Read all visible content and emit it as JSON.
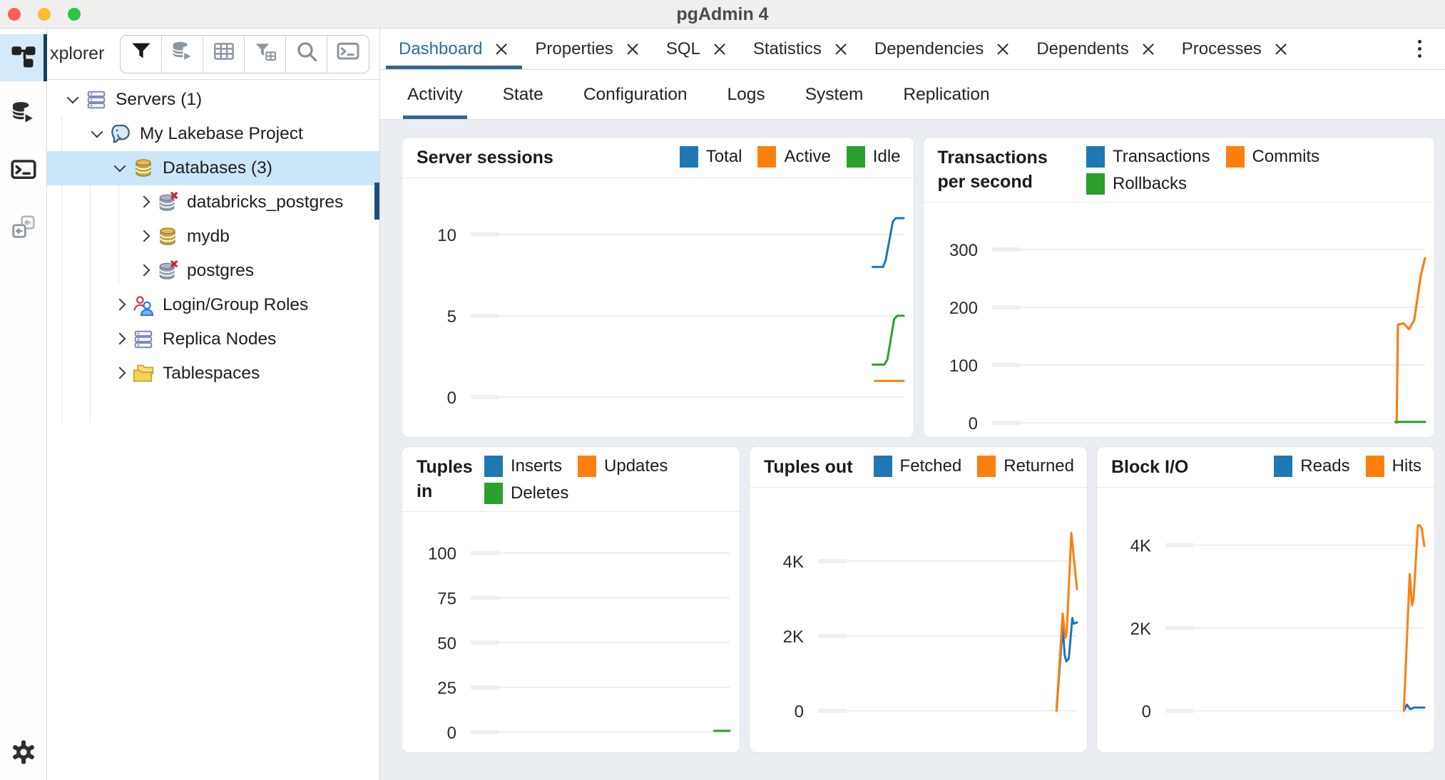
{
  "window": {
    "title": "pgAdmin 4"
  },
  "colors": {
    "accent": "#326690",
    "active_tab_text": "#2d6d98",
    "tree_selection_bg": "#cbe6f9",
    "activity_active_bg": "#d4eafb",
    "activity_active_indicator": "#1a3e5e",
    "scrollbar_thumb": "#1d4f7c",
    "mac_close": "#ff5f57",
    "mac_minimize": "#febc2e",
    "mac_zoom": "#28c840",
    "series_blue": "#1F77B4",
    "series_orange": "#FF7F0E",
    "series_green": "#2CA02C"
  },
  "activity_bar": {
    "items": [
      {
        "name": "object-explorer",
        "active": true
      },
      {
        "name": "query-tool",
        "active": false
      },
      {
        "name": "psql-tool",
        "active": false
      },
      {
        "name": "schema-diff",
        "active": false
      }
    ],
    "bottom_item": "preferences"
  },
  "sidebar": {
    "header_label": "xplorer",
    "toolbar_buttons": [
      "filter",
      "query-tool",
      "view-data",
      "filter-rows",
      "search",
      "psql"
    ],
    "tree": [
      {
        "label": "Servers (1)",
        "depth": 1,
        "icon": "servers",
        "expanded": true,
        "selected": false
      },
      {
        "label": "My Lakebase Project",
        "depth": 2,
        "icon": "postgresql-server",
        "expanded": true,
        "selected": false
      },
      {
        "label": "Databases (3)",
        "depth": 3,
        "icon": "database-gold",
        "expanded": true,
        "selected": true
      },
      {
        "label": "databricks_postgres",
        "depth": 4,
        "icon": "database-disconnected",
        "expanded": false,
        "selected": false
      },
      {
        "label": "mydb",
        "depth": 4,
        "icon": "database-gold",
        "expanded": false,
        "selected": false
      },
      {
        "label": "postgres",
        "depth": 4,
        "icon": "database-disconnected",
        "expanded": false,
        "selected": false
      },
      {
        "label": "Login/Group Roles",
        "depth": 3,
        "icon": "roles",
        "expanded": false,
        "selected": false
      },
      {
        "label": "Replica Nodes",
        "depth": 3,
        "icon": "servers",
        "expanded": false,
        "selected": false
      },
      {
        "label": "Tablespaces",
        "depth": 3,
        "icon": "tablespaces",
        "expanded": false,
        "selected": false
      }
    ]
  },
  "tabs": {
    "items": [
      {
        "label": "Dashboard",
        "active": true,
        "closable": true
      },
      {
        "label": "Properties",
        "active": false,
        "closable": true
      },
      {
        "label": "SQL",
        "active": false,
        "closable": true
      },
      {
        "label": "Statistics",
        "active": false,
        "closable": true
      },
      {
        "label": "Dependencies",
        "active": false,
        "closable": true
      },
      {
        "label": "Dependents",
        "active": false,
        "closable": true
      },
      {
        "label": "Processes",
        "active": false,
        "closable": true
      }
    ],
    "overflow_menu": "more-options"
  },
  "subtabs": {
    "items": [
      {
        "label": "Activity",
        "active": true
      },
      {
        "label": "State",
        "active": false
      },
      {
        "label": "Configuration",
        "active": false
      },
      {
        "label": "Logs",
        "active": false
      },
      {
        "label": "System",
        "active": false
      },
      {
        "label": "Replication",
        "active": false
      }
    ]
  },
  "chart_data": [
    {
      "type": "line",
      "title": "Server sessions",
      "grid": true,
      "legend_position": "top-right",
      "ylim": [
        0,
        11.7
      ],
      "yticks": [
        {
          "v": 0,
          "label": "0"
        },
        {
          "v": 5,
          "label": "5"
        },
        {
          "v": 10,
          "label": "10"
        }
      ],
      "series": [
        {
          "name": "Total",
          "color": "#1F77B4",
          "points": [
            [
              0.928,
              8
            ],
            [
              0.952,
              8
            ],
            [
              0.958,
              8.4
            ],
            [
              0.975,
              10.8
            ],
            [
              0.982,
              11
            ],
            [
              1,
              11
            ]
          ]
        },
        {
          "name": "Active",
          "color": "#FF7F0E",
          "points": [
            [
              0.933,
              1
            ],
            [
              1,
              1
            ]
          ]
        },
        {
          "name": "Idle",
          "color": "#2CA02C",
          "points": [
            [
              0.928,
              2
            ],
            [
              0.955,
              2
            ],
            [
              0.962,
              2.3
            ],
            [
              0.978,
              4.8
            ],
            [
              0.985,
              5
            ],
            [
              1,
              5
            ]
          ]
        }
      ]
    },
    {
      "type": "line",
      "title": "Transactions per second",
      "grid": true,
      "legend_position": "top-right",
      "ylim": [
        0,
        332
      ],
      "yticks": [
        {
          "v": 0,
          "label": "0"
        },
        {
          "v": 100,
          "label": "100"
        },
        {
          "v": 200,
          "label": "200"
        },
        {
          "v": 300,
          "label": "300"
        }
      ],
      "series": [
        {
          "name": "Transactions",
          "color": "#1F77B4",
          "points": [
            [
              0.934,
              0
            ],
            [
              0.937,
              170
            ],
            [
              0.95,
              172
            ],
            [
              0.958,
              166
            ],
            [
              0.963,
              162
            ],
            [
              0.975,
              178
            ],
            [
              0.99,
              255
            ],
            [
              1,
              285
            ]
          ]
        },
        {
          "name": "Commits",
          "color": "#FF7F0E",
          "points": [
            [
              0.934,
              0
            ],
            [
              0.937,
              170
            ],
            [
              0.95,
              172
            ],
            [
              0.958,
              166
            ],
            [
              0.963,
              162
            ],
            [
              0.975,
              178
            ],
            [
              0.99,
              255
            ],
            [
              1,
              285
            ]
          ]
        },
        {
          "name": "Rollbacks",
          "color": "#2CA02C",
          "points": [
            [
              0.931,
              1.5
            ],
            [
              1,
              1.5
            ]
          ]
        }
      ]
    },
    {
      "type": "line",
      "title": "Tuples in",
      "grid": true,
      "legend_position": "top-right",
      "ylim": [
        0,
        107
      ],
      "yticks": [
        {
          "v": 0,
          "label": "0"
        },
        {
          "v": 25,
          "label": "25"
        },
        {
          "v": 50,
          "label": "50"
        },
        {
          "v": 75,
          "label": "75"
        },
        {
          "v": 100,
          "label": "100"
        }
      ],
      "series": [
        {
          "name": "Inserts",
          "color": "#1F77B4",
          "points": [
            [
              0.94,
              0.8
            ],
            [
              1,
              0.8
            ]
          ]
        },
        {
          "name": "Updates",
          "color": "#FF7F0E",
          "points": [
            [
              0.94,
              0.8
            ],
            [
              1,
              0.8
            ]
          ]
        },
        {
          "name": "Deletes",
          "color": "#2CA02C",
          "points": [
            [
              0.94,
              0.8
            ],
            [
              1,
              0.8
            ]
          ]
        }
      ]
    },
    {
      "type": "line",
      "title": "Tuples out",
      "grid": true,
      "legend_position": "top-right",
      "ylim": [
        0,
        5200
      ],
      "yticks": [
        {
          "v": 0,
          "label": "0"
        },
        {
          "v": 2000,
          "label": "2K"
        },
        {
          "v": 4000,
          "label": "4K"
        }
      ],
      "series": [
        {
          "name": "Fetched",
          "color": "#1F77B4",
          "points": [
            [
              0.92,
              0
            ],
            [
              0.944,
              2250
            ],
            [
              0.952,
              1500
            ],
            [
              0.958,
              1320
            ],
            [
              0.968,
              1400
            ],
            [
              0.982,
              2480
            ],
            [
              0.987,
              2330
            ],
            [
              1,
              2360
            ]
          ]
        },
        {
          "name": "Returned",
          "color": "#FF7F0E",
          "points": [
            [
              0.92,
              0
            ],
            [
              0.944,
              2600
            ],
            [
              0.955,
              1950
            ],
            [
              0.96,
              2100
            ],
            [
              0.978,
              4750
            ],
            [
              1,
              3250
            ]
          ]
        }
      ]
    },
    {
      "type": "line",
      "title": "Block I/O",
      "grid": true,
      "legend_position": "top-right",
      "ylim": [
        0,
        4700
      ],
      "yticks": [
        {
          "v": 0,
          "label": "0"
        },
        {
          "v": 2000,
          "label": "2K"
        },
        {
          "v": 4000,
          "label": "4K"
        }
      ],
      "series": [
        {
          "name": "Reads",
          "color": "#1F77B4",
          "points": [
            [
              0.92,
              0
            ],
            [
              0.932,
              150
            ],
            [
              0.945,
              40
            ],
            [
              0.96,
              80
            ],
            [
              1,
              80
            ]
          ]
        },
        {
          "name": "Hits",
          "color": "#FF7F0E",
          "points": [
            [
              0.92,
              0
            ],
            [
              0.943,
              3300
            ],
            [
              0.952,
              2550
            ],
            [
              0.958,
              2700
            ],
            [
              0.975,
              4480
            ],
            [
              0.982,
              4480
            ],
            [
              0.99,
              4400
            ],
            [
              1,
              3980
            ]
          ]
        }
      ]
    }
  ]
}
